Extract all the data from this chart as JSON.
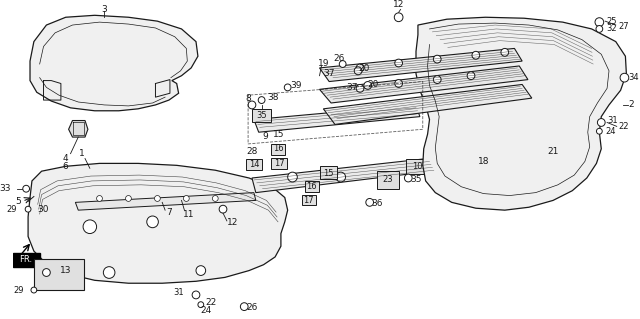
{
  "bg_color": "#ffffff",
  "line_color": "#1a1a1a",
  "figsize": [
    6.4,
    3.19
  ],
  "dpi": 100
}
